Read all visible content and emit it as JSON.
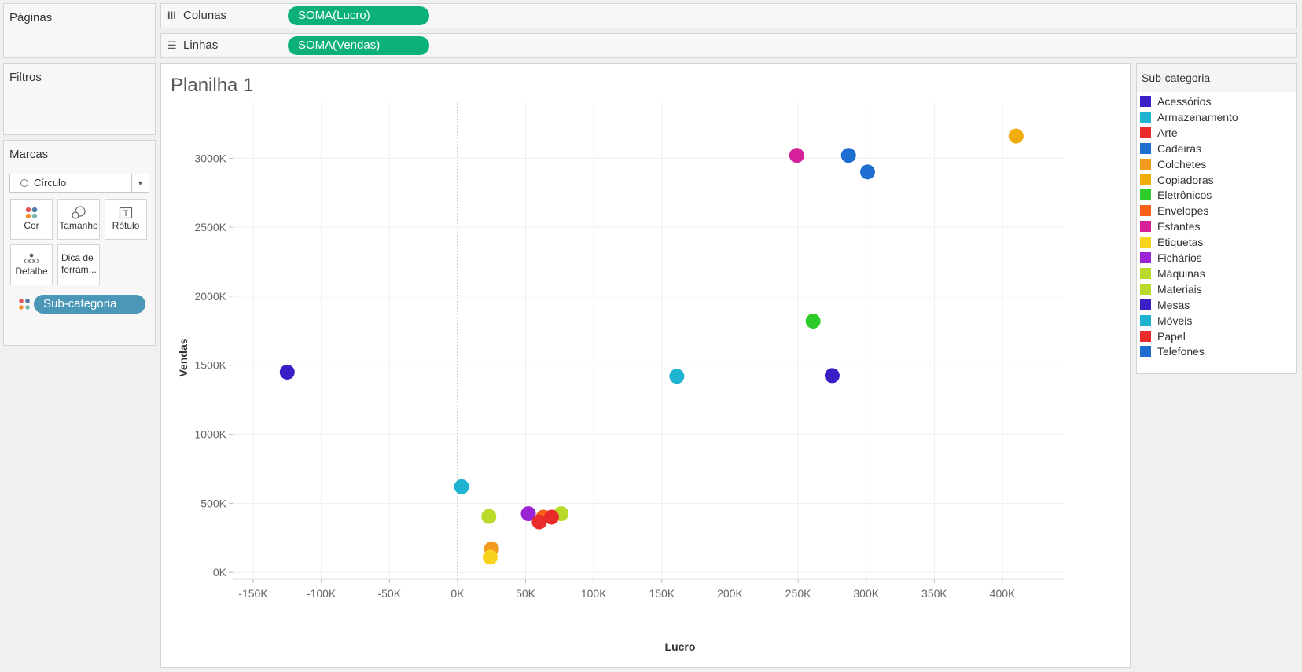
{
  "pages_panel": {
    "title": "Páginas"
  },
  "filters_panel": {
    "title": "Filtros"
  },
  "marks_panel": {
    "title": "Marcas",
    "mark_type": "Círculo",
    "buttons": {
      "color": "Cor",
      "size": "Tamanho",
      "label": "Rótulo",
      "detail": "Detalhe",
      "tooltip_line1": "Dica de",
      "tooltip_line2": "ferram..."
    },
    "color_field": "Sub-categoria"
  },
  "shelves": {
    "columns": {
      "label": "Colunas",
      "pill": "SOMA(Lucro)"
    },
    "rows": {
      "label": "Linhas",
      "pill": "SOMA(Vendas)"
    }
  },
  "sheet": {
    "title": "Planilha 1"
  },
  "legend": {
    "title": "Sub-categoria",
    "items": [
      {
        "label": "Acessórios",
        "color": "#3a1fc7"
      },
      {
        "label": "Armazenamento",
        "color": "#1fb3d2"
      },
      {
        "label": "Arte",
        "color": "#ea2b2b"
      },
      {
        "label": "Cadeiras",
        "color": "#1e6dd1"
      },
      {
        "label": "Colchetes",
        "color": "#f29a1d"
      },
      {
        "label": "Copiadoras",
        "color": "#f1ad0e"
      },
      {
        "label": "Eletrônicos",
        "color": "#2ecc2a"
      },
      {
        "label": "Envelopes",
        "color": "#f56218"
      },
      {
        "label": "Estantes",
        "color": "#d4219a"
      },
      {
        "label": "Etiquetas",
        "color": "#f6d31c"
      },
      {
        "label": "Fichários",
        "color": "#9a23d3"
      },
      {
        "label": "Máquinas",
        "color": "#b8db2b"
      },
      {
        "label": "Materiais",
        "color": "#b8db2b"
      },
      {
        "label": "Mesas",
        "color": "#3a1fc7"
      },
      {
        "label": "Móveis",
        "color": "#1fb3d2"
      },
      {
        "label": "Papel",
        "color": "#ea2b2b"
      },
      {
        "label": "Telefones",
        "color": "#1e6dd1"
      }
    ]
  },
  "chart_data": {
    "type": "scatter",
    "xlabel": "Lucro",
    "ylabel": "Vendas",
    "xlim": [
      -165000,
      445000
    ],
    "ylim": [
      -50000,
      3400000
    ],
    "x_ticks": [
      -150000,
      -100000,
      -50000,
      0,
      50000,
      100000,
      150000,
      200000,
      250000,
      300000,
      350000,
      400000
    ],
    "x_tick_labels": [
      "-150K",
      "-100K",
      "-50K",
      "0K",
      "50K",
      "100K",
      "150K",
      "200K",
      "250K",
      "300K",
      "350K",
      "400K"
    ],
    "y_ticks": [
      0,
      500000,
      1000000,
      1500000,
      2000000,
      2500000,
      3000000
    ],
    "y_tick_labels": [
      "0K",
      "500K",
      "1000K",
      "1500K",
      "2000K",
      "2500K",
      "3000K"
    ],
    "grid": true,
    "points": [
      {
        "name": "Copiadoras",
        "x": 410000,
        "y": 3160000,
        "color": "#f1ad0e"
      },
      {
        "name": "Estantes",
        "x": 249000,
        "y": 3020000,
        "color": "#d4219a"
      },
      {
        "name": "Cadeiras",
        "x": 287000,
        "y": 3020000,
        "color": "#1e6dd1"
      },
      {
        "name": "Telefones",
        "x": 301000,
        "y": 2900000,
        "color": "#1e6dd1"
      },
      {
        "name": "Eletrônicos",
        "x": 261000,
        "y": 1820000,
        "color": "#2ecc2a"
      },
      {
        "name": "Mesas",
        "x": -125000,
        "y": 1450000,
        "color": "#3a1fc7"
      },
      {
        "name": "Móveis",
        "x": 161000,
        "y": 1420000,
        "color": "#1fb3d2"
      },
      {
        "name": "Acessórios",
        "x": 275000,
        "y": 1425000,
        "color": "#3a1fc7"
      },
      {
        "name": "Armazenamento",
        "x": 3000,
        "y": 620000,
        "color": "#1fb3d2"
      },
      {
        "name": "Materiais",
        "x": 23000,
        "y": 405000,
        "color": "#b8db2b"
      },
      {
        "name": "Fichários",
        "x": 52000,
        "y": 425000,
        "color": "#9a23d3"
      },
      {
        "name": "Máquinas",
        "x": 76000,
        "y": 425000,
        "color": "#b8db2b"
      },
      {
        "name": "Envelopes",
        "x": 63000,
        "y": 400000,
        "color": "#f56218"
      },
      {
        "name": "Arte",
        "x": 60000,
        "y": 365000,
        "color": "#ea2b2b"
      },
      {
        "name": "Papel",
        "x": 69000,
        "y": 400000,
        "color": "#ea2b2b"
      },
      {
        "name": "Colchetes",
        "x": 25000,
        "y": 170000,
        "color": "#f29a1d"
      },
      {
        "name": "Etiquetas",
        "x": 24000,
        "y": 110000,
        "color": "#f6d31c"
      }
    ]
  }
}
